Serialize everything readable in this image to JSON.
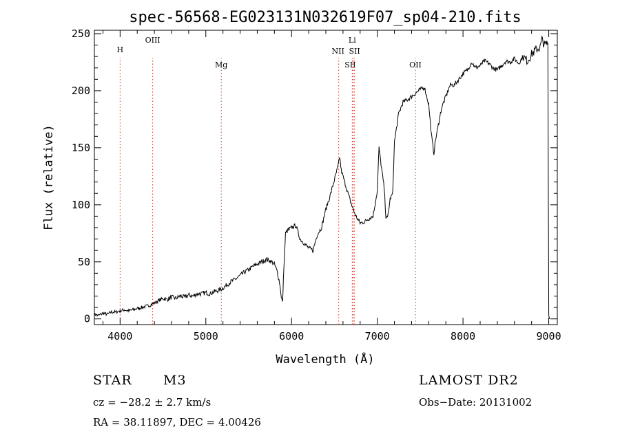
{
  "chart_data": {
    "type": "line",
    "title": "spec-56568-EG023131N032619F07_sp04-210.fits",
    "xlabel": "Wavelength (Å)",
    "ylabel": "Flux (relative)",
    "xlim": [
      3700,
      9100
    ],
    "ylim": [
      -5,
      253
    ],
    "xticks": [
      4000,
      5000,
      6000,
      7000,
      8000,
      9000
    ],
    "yticks": [
      0,
      50,
      100,
      150,
      200,
      250
    ],
    "grid": false,
    "series": [
      {
        "x": [
          3700,
          3750,
          3800,
          3850,
          3900,
          3950,
          4000,
          4050,
          4100,
          4150,
          4200,
          4250,
          4300,
          4350,
          4400,
          4450,
          4500,
          4550,
          4600,
          4650,
          4700,
          4750,
          4800,
          4850,
          4900,
          4950,
          5000,
          5050,
          5100,
          5150,
          5200,
          5250,
          5300,
          5350,
          5400,
          5450,
          5500,
          5550,
          5600,
          5650,
          5700,
          5750,
          5800,
          5830,
          5860,
          5880,
          5895,
          5910,
          5930,
          5960,
          6000,
          6050,
          6100,
          6150,
          6200,
          6250,
          6300,
          6350,
          6400,
          6450,
          6500,
          6540,
          6562,
          6580,
          6620,
          6650,
          6700,
          6750,
          6800,
          6850,
          6900,
          6950,
          7000,
          7020,
          7050,
          7080,
          7100,
          7120,
          7150,
          7180,
          7200,
          7250,
          7300,
          7350,
          7400,
          7450,
          7500,
          7550,
          7600,
          7630,
          7660,
          7680,
          7700,
          7750,
          7800,
          7850,
          7900,
          7950,
          8000,
          8050,
          8100,
          8150,
          8200,
          8250,
          8300,
          8350,
          8400,
          8450,
          8500,
          8550,
          8600,
          8650,
          8700,
          8750,
          8800,
          8850,
          8900,
          8920,
          8950,
          8990,
          9000,
          9010
        ],
        "y": [
          4,
          3,
          5,
          4,
          6,
          6,
          7,
          8,
          7,
          8,
          9,
          10,
          11,
          12,
          14,
          16,
          18,
          17,
          19,
          18,
          20,
          19,
          21,
          20,
          22,
          22,
          23,
          22,
          24,
          25,
          27,
          30,
          33,
          35,
          38,
          41,
          43,
          46,
          48,
          50,
          52,
          51,
          48,
          42,
          32,
          20,
          14,
          45,
          75,
          78,
          80,
          82,
          70,
          66,
          62,
          60,
          74,
          80,
          96,
          108,
          122,
          133,
          142,
          130,
          120,
          112,
          100,
          90,
          84,
          85,
          88,
          90,
          112,
          150,
          132,
          115,
          90,
          88,
          105,
          110,
          155,
          180,
          190,
          192,
          195,
          198,
          201,
          203,
          188,
          162,
          145,
          157,
          165,
          185,
          195,
          205,
          205,
          210,
          215,
          218,
          225,
          220,
          222,
          226,
          224,
          220,
          218,
          222,
          226,
          225,
          228,
          224,
          230,
          226,
          232,
          236,
          238,
          245,
          240,
          242,
          3,
          0
        ]
      }
    ],
    "lines": [
      {
        "label": "H",
        "x": 4000,
        "color": "#c0392b"
      },
      {
        "label": "OIII",
        "x": 4380,
        "color": "#c0392b"
      },
      {
        "label": "Mg",
        "x": 5180,
        "color": "#c0392b"
      },
      {
        "label": "NII",
        "x": 6550,
        "color": "#c0392b"
      },
      {
        "label": "Li",
        "x": 6708,
        "color": "#c0392b"
      },
      {
        "label": "SII",
        "x": 6718,
        "color": "#c0392b"
      },
      {
        "label": "SII",
        "x": 6732,
        "color": "#c0392b"
      },
      {
        "label": "OII",
        "x": 7445,
        "color": "#c0392b"
      }
    ]
  },
  "info": {
    "class": "STAR",
    "subclass": "M3",
    "survey": "LAMOST DR2",
    "cz": "cz = −28.2 ± 2.7 km/s",
    "obs_date": "Obs−Date: 20131002",
    "coords": "RA =  38.11897, DEC =   4.00426"
  }
}
